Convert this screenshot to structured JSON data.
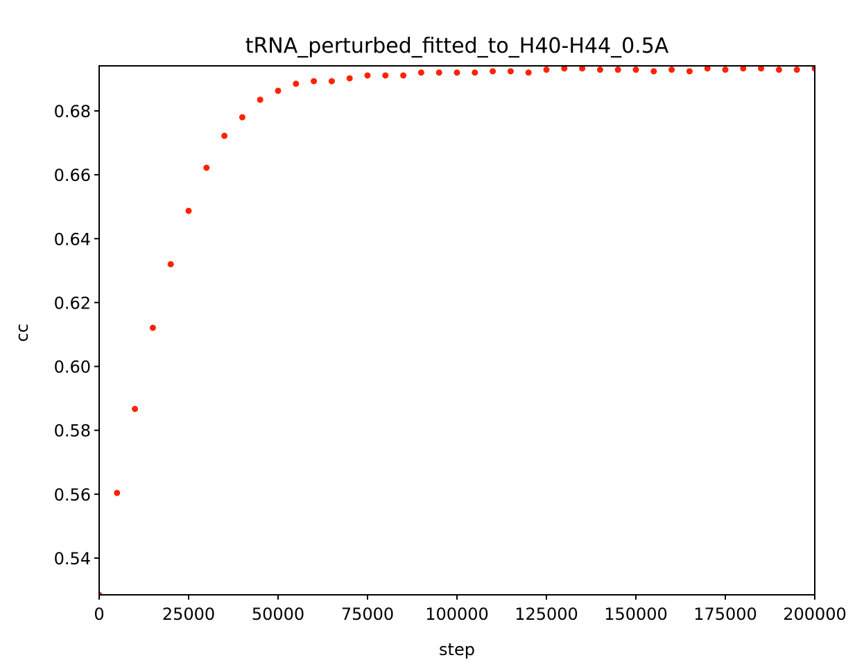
{
  "chart_data": {
    "type": "scatter",
    "title": "tRNA_perturbed_fitted_to_H40-H44_0.5A",
    "xlabel": "step",
    "ylabel": "cc",
    "xlim": [
      0,
      200000
    ],
    "ylim": [
      0.5285,
      0.6941
    ],
    "xticks": [
      0,
      25000,
      50000,
      75000,
      100000,
      125000,
      150000,
      175000,
      200000
    ],
    "xtick_labels": [
      "0",
      "25000",
      "50000",
      "75000",
      "100000",
      "125000",
      "150000",
      "175000",
      "200000"
    ],
    "yticks": [
      0.54,
      0.56,
      0.58,
      0.6,
      0.62,
      0.64,
      0.66,
      0.68
    ],
    "ytick_labels": [
      "0.54",
      "0.56",
      "0.58",
      "0.60",
      "0.62",
      "0.64",
      "0.66",
      "0.68"
    ],
    "grid": false,
    "marker_color": "#ff2200",
    "x": [
      0,
      5000,
      10000,
      15000,
      20000,
      25000,
      30000,
      35000,
      40000,
      45000,
      50000,
      55000,
      60000,
      65000,
      70000,
      75000,
      80000,
      85000,
      90000,
      95000,
      100000,
      105000,
      110000,
      115000,
      120000,
      125000,
      130000,
      135000,
      140000,
      145000,
      150000,
      155000,
      160000,
      165000,
      170000,
      175000,
      180000,
      185000,
      190000,
      195000,
      200000
    ],
    "y": [
      0.5285,
      0.5604,
      0.5867,
      0.6121,
      0.632,
      0.6487,
      0.6622,
      0.6722,
      0.678,
      0.6835,
      0.6863,
      0.6885,
      0.6893,
      0.6893,
      0.6902,
      0.6911,
      0.6911,
      0.6911,
      0.692,
      0.692,
      0.692,
      0.692,
      0.6924,
      0.6924,
      0.692,
      0.6929,
      0.6933,
      0.6933,
      0.6929,
      0.6929,
      0.6929,
      0.6924,
      0.6929,
      0.6924,
      0.6933,
      0.6929,
      0.6933,
      0.6933,
      0.6929,
      0.6929,
      0.6933
    ]
  }
}
